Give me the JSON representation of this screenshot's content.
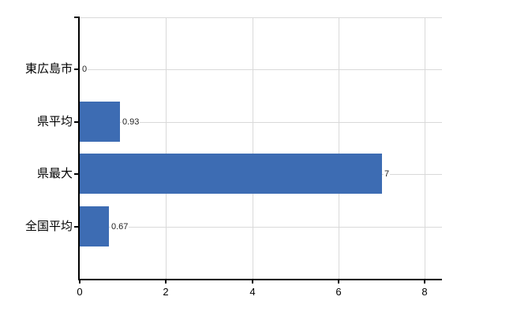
{
  "chart_data": {
    "type": "bar",
    "orientation": "horizontal",
    "title": "",
    "categories": [
      "東広島市",
      "県平均",
      "県最大",
      "全国平均"
    ],
    "values": [
      0,
      0.93,
      7,
      0.67
    ],
    "value_labels": [
      "0",
      "0.93",
      "7",
      "0.67"
    ],
    "x_ticks": [
      0,
      2,
      4,
      6,
      8
    ],
    "x_tick_labels": [
      "0",
      "2",
      "4",
      "6",
      "8"
    ],
    "xlim": [
      0,
      8.4
    ],
    "grid": "on",
    "legend": "none",
    "colors": {
      "bar": "#3d6cb3",
      "gridline": "#d9d9d9",
      "axis": "#000000",
      "category_text": "#000000",
      "value_text": "#1f1f1f"
    }
  }
}
